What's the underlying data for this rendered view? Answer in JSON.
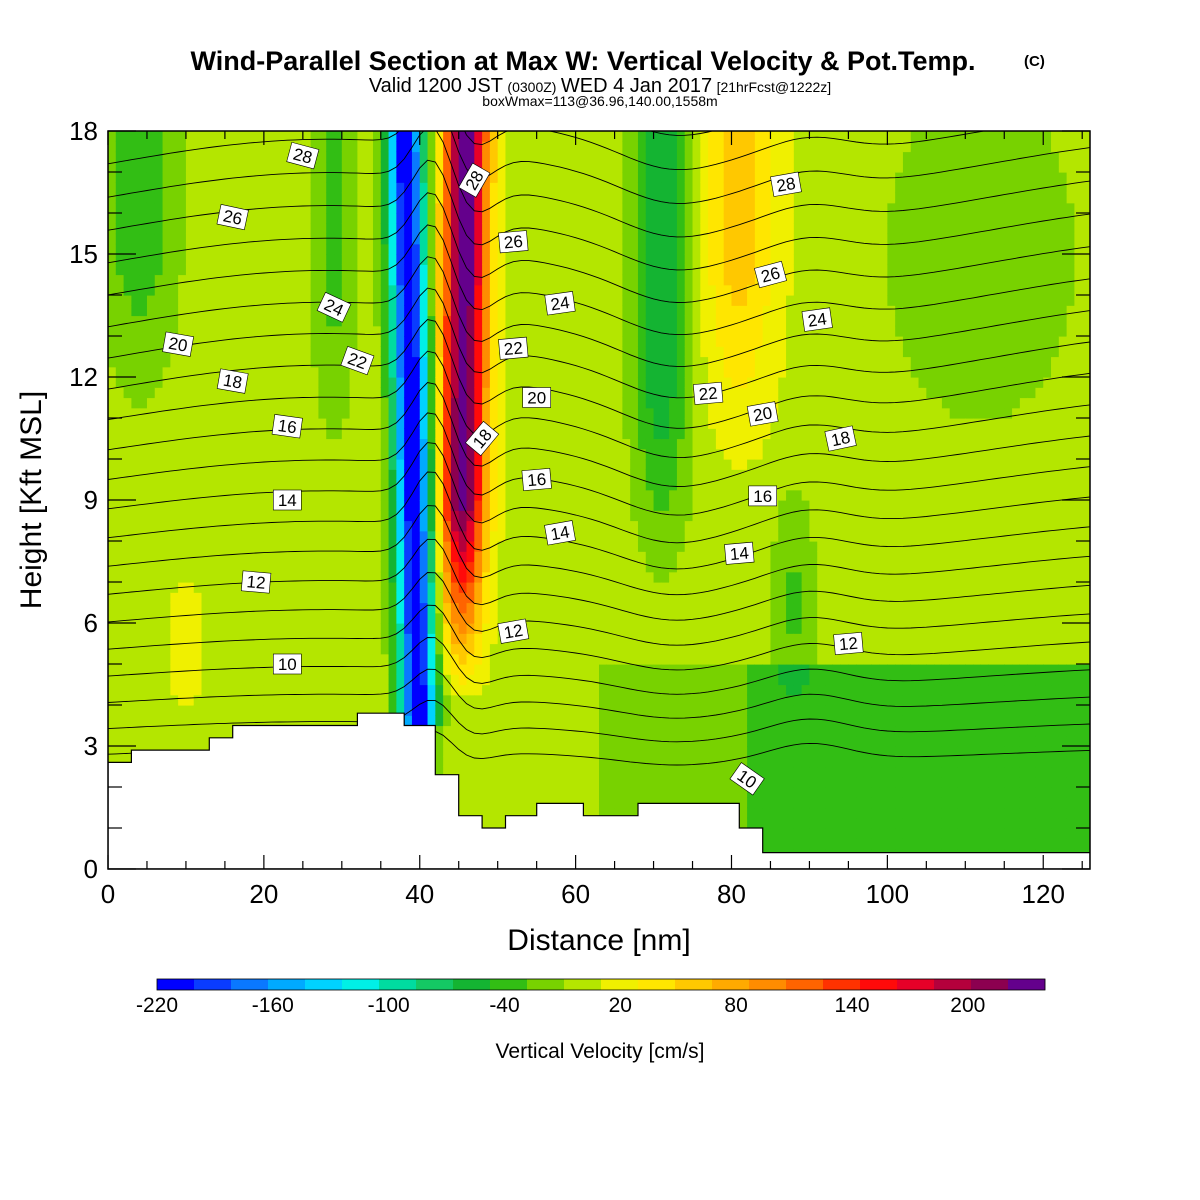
{
  "header": {
    "title_main": "Wind-Parallel Section at Max W: Vertical Velocity & Pot.Temp.",
    "title_mark": "(C)",
    "subtitle_a": "Valid 1200 JST",
    "subtitle_b": "(0300Z)",
    "subtitle_c": "WED 4 Jan 2017",
    "subtitle_d": "[21hrFcst@1222z]",
    "subtitle2": "boxWmax=113@36.96,140.00,1558m"
  },
  "chart_data": {
    "type": "contour",
    "title": "Wind-Parallel Section at Max W: Vertical Velocity & Pot.Temp.",
    "xlabel": "Distance [nm]",
    "ylabel": "Height [Kft MSL]",
    "xlim": [
      0,
      126
    ],
    "ylim": [
      0,
      18
    ],
    "x_ticks": [
      0,
      20,
      40,
      60,
      80,
      100,
      120
    ],
    "y_ticks": [
      0,
      3,
      6,
      9,
      12,
      15,
      18
    ],
    "colorbar": {
      "label": "Vertical Velocity [cm/s]",
      "tick_values": [
        -220,
        -160,
        -100,
        -40,
        20,
        80,
        140,
        200
      ],
      "tick_labels": [
        "-220",
        "-160",
        "-100",
        "-40",
        "20",
        "80",
        "140",
        "200"
      ],
      "levels": [
        -220,
        -200,
        -180,
        -160,
        -140,
        -120,
        -100,
        -80,
        -60,
        -40,
        -20,
        0,
        20,
        40,
        60,
        80,
        100,
        120,
        140,
        160,
        180,
        200,
        220,
        240
      ],
      "colors": [
        "#0000ff",
        "#0a3cff",
        "#0a78ff",
        "#00aaff",
        "#00d2ff",
        "#00f0e6",
        "#00dca0",
        "#14c864",
        "#14b432",
        "#32be14",
        "#78d200",
        "#b4e600",
        "#f0f000",
        "#ffe600",
        "#ffc800",
        "#ffaa00",
        "#ff8c00",
        "#ff6400",
        "#ff3200",
        "#ff0a0a",
        "#e60028",
        "#b4003c",
        "#8c0050",
        "#64008c"
      ]
    },
    "contour_field": "Potential Temperature",
    "contour_labels": [
      {
        "x": 25,
        "y": 17.4,
        "text": "28",
        "angle": 15
      },
      {
        "x": 47,
        "y": 16.8,
        "text": "28",
        "angle": -60
      },
      {
        "x": 87,
        "y": 16.7,
        "text": "28",
        "angle": -10
      },
      {
        "x": 16,
        "y": 15.9,
        "text": "26",
        "angle": 12
      },
      {
        "x": 52,
        "y": 15.3,
        "text": "26",
        "angle": -5
      },
      {
        "x": 85,
        "y": 14.5,
        "text": "26",
        "angle": -15
      },
      {
        "x": 29,
        "y": 13.7,
        "text": "24",
        "angle": 25
      },
      {
        "x": 58,
        "y": 13.8,
        "text": "24",
        "angle": -8
      },
      {
        "x": 91,
        "y": 13.4,
        "text": "24",
        "angle": -8
      },
      {
        "x": 9,
        "y": 12.8,
        "text": "20",
        "angle": 10
      },
      {
        "x": 32,
        "y": 12.4,
        "text": "22",
        "angle": 20
      },
      {
        "x": 52,
        "y": 12.7,
        "text": "22",
        "angle": -5
      },
      {
        "x": 77,
        "y": 11.6,
        "text": "22",
        "angle": -5
      },
      {
        "x": 16,
        "y": 11.9,
        "text": "18",
        "angle": 10
      },
      {
        "x": 55,
        "y": 11.5,
        "text": "20",
        "angle": 0
      },
      {
        "x": 84,
        "y": 11.1,
        "text": "20",
        "angle": -10
      },
      {
        "x": 23,
        "y": 10.8,
        "text": "16",
        "angle": 8
      },
      {
        "x": 48,
        "y": 10.5,
        "text": "18",
        "angle": -50
      },
      {
        "x": 94,
        "y": 10.5,
        "text": "18",
        "angle": -12
      },
      {
        "x": 55,
        "y": 9.5,
        "text": "16",
        "angle": -5
      },
      {
        "x": 84,
        "y": 9.1,
        "text": "16",
        "angle": 0
      },
      {
        "x": 23,
        "y": 9.0,
        "text": "14",
        "angle": 0
      },
      {
        "x": 58,
        "y": 8.2,
        "text": "14",
        "angle": -10
      },
      {
        "x": 81,
        "y": 7.7,
        "text": "14",
        "angle": -5
      },
      {
        "x": 19,
        "y": 7.0,
        "text": "12",
        "angle": 5
      },
      {
        "x": 52,
        "y": 5.8,
        "text": "12",
        "angle": -10
      },
      {
        "x": 95,
        "y": 5.5,
        "text": "12",
        "angle": -5
      },
      {
        "x": 23,
        "y": 5.0,
        "text": "10",
        "angle": 0
      },
      {
        "x": 82,
        "y": 2.2,
        "text": "10",
        "angle": 35
      }
    ],
    "terrain_profile": {
      "x": [
        0,
        3,
        3,
        13,
        13,
        16,
        16,
        32,
        32,
        38,
        38,
        42,
        42,
        45,
        45,
        48,
        48,
        51,
        51,
        55,
        55,
        61,
        61,
        68,
        68,
        81,
        81,
        84,
        84,
        126
      ],
      "y": [
        2.6,
        2.6,
        2.9,
        2.9,
        3.2,
        3.2,
        3.5,
        3.5,
        3.8,
        3.8,
        3.5,
        3.5,
        2.3,
        2.3,
        1.3,
        1.3,
        1.0,
        1.0,
        1.3,
        1.3,
        1.6,
        1.6,
        1.3,
        1.3,
        1.6,
        1.6,
        1.0,
        1.0,
        0.4,
        0.4
      ]
    }
  }
}
